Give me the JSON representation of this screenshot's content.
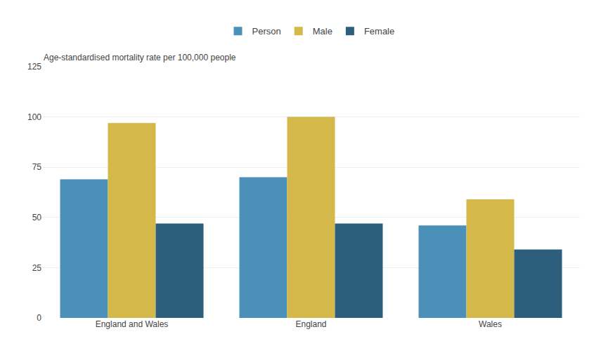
{
  "chart_data": {
    "type": "bar",
    "ylabel": "Age-standardised mortality rate per 100,000 people",
    "categories": [
      "England and Wales",
      "England",
      "Wales"
    ],
    "series": [
      {
        "name": "Person",
        "color": "#4a90b8",
        "values": [
          69,
          70,
          46
        ]
      },
      {
        "name": "Male",
        "color": "#d4b84a",
        "values": [
          97,
          100,
          59
        ]
      },
      {
        "name": "Female",
        "color": "#2d5f7c",
        "values": [
          47,
          47,
          34
        ]
      }
    ],
    "ylim": [
      0,
      125
    ],
    "yticks": [
      0,
      25,
      50,
      75,
      100,
      125
    ],
    "grid": true,
    "legend": "top"
  }
}
